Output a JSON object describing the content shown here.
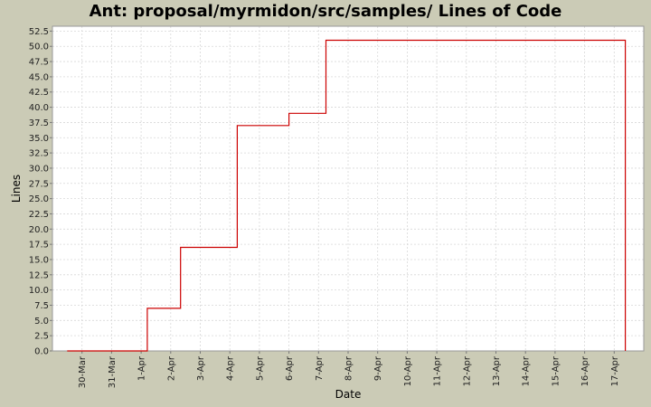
{
  "chart_data": {
    "type": "line",
    "title": "Ant: proposal/myrmidon/src/samples/ Lines of Code",
    "xlabel": "Date",
    "ylabel": "Lines",
    "ylim": [
      0,
      53.3
    ],
    "xlim": [
      "29-Mar",
      "18-Apr"
    ],
    "y_ticks": [
      "0.0",
      "2.5",
      "5.0",
      "7.5",
      "10.0",
      "12.5",
      "15.0",
      "17.5",
      "20.0",
      "22.5",
      "25.0",
      "27.5",
      "30.0",
      "32.5",
      "35.0",
      "37.5",
      "40.0",
      "42.5",
      "45.0",
      "47.5",
      "50.0",
      "52.5"
    ],
    "x_ticks": [
      "30-Mar",
      "31-Mar",
      "1-Apr",
      "2-Apr",
      "3-Apr",
      "4-Apr",
      "5-Apr",
      "6-Apr",
      "7-Apr",
      "8-Apr",
      "9-Apr",
      "10-Apr",
      "11-Apr",
      "12-Apr",
      "13-Apr",
      "14-Apr",
      "15-Apr",
      "16-Apr",
      "17-Apr"
    ],
    "grid": true,
    "step": true,
    "series": [
      {
        "color": "#cc0000",
        "x": [
          "29-Mar 12:00",
          "1-Apr 05:00",
          "2-Apr 08:00",
          "4-Apr 06:00",
          "6-Apr 00:00",
          "7-Apr 06:00",
          "17-Apr 09:00"
        ],
        "y": [
          0,
          7,
          17,
          37,
          39,
          51,
          0
        ]
      }
    ]
  }
}
